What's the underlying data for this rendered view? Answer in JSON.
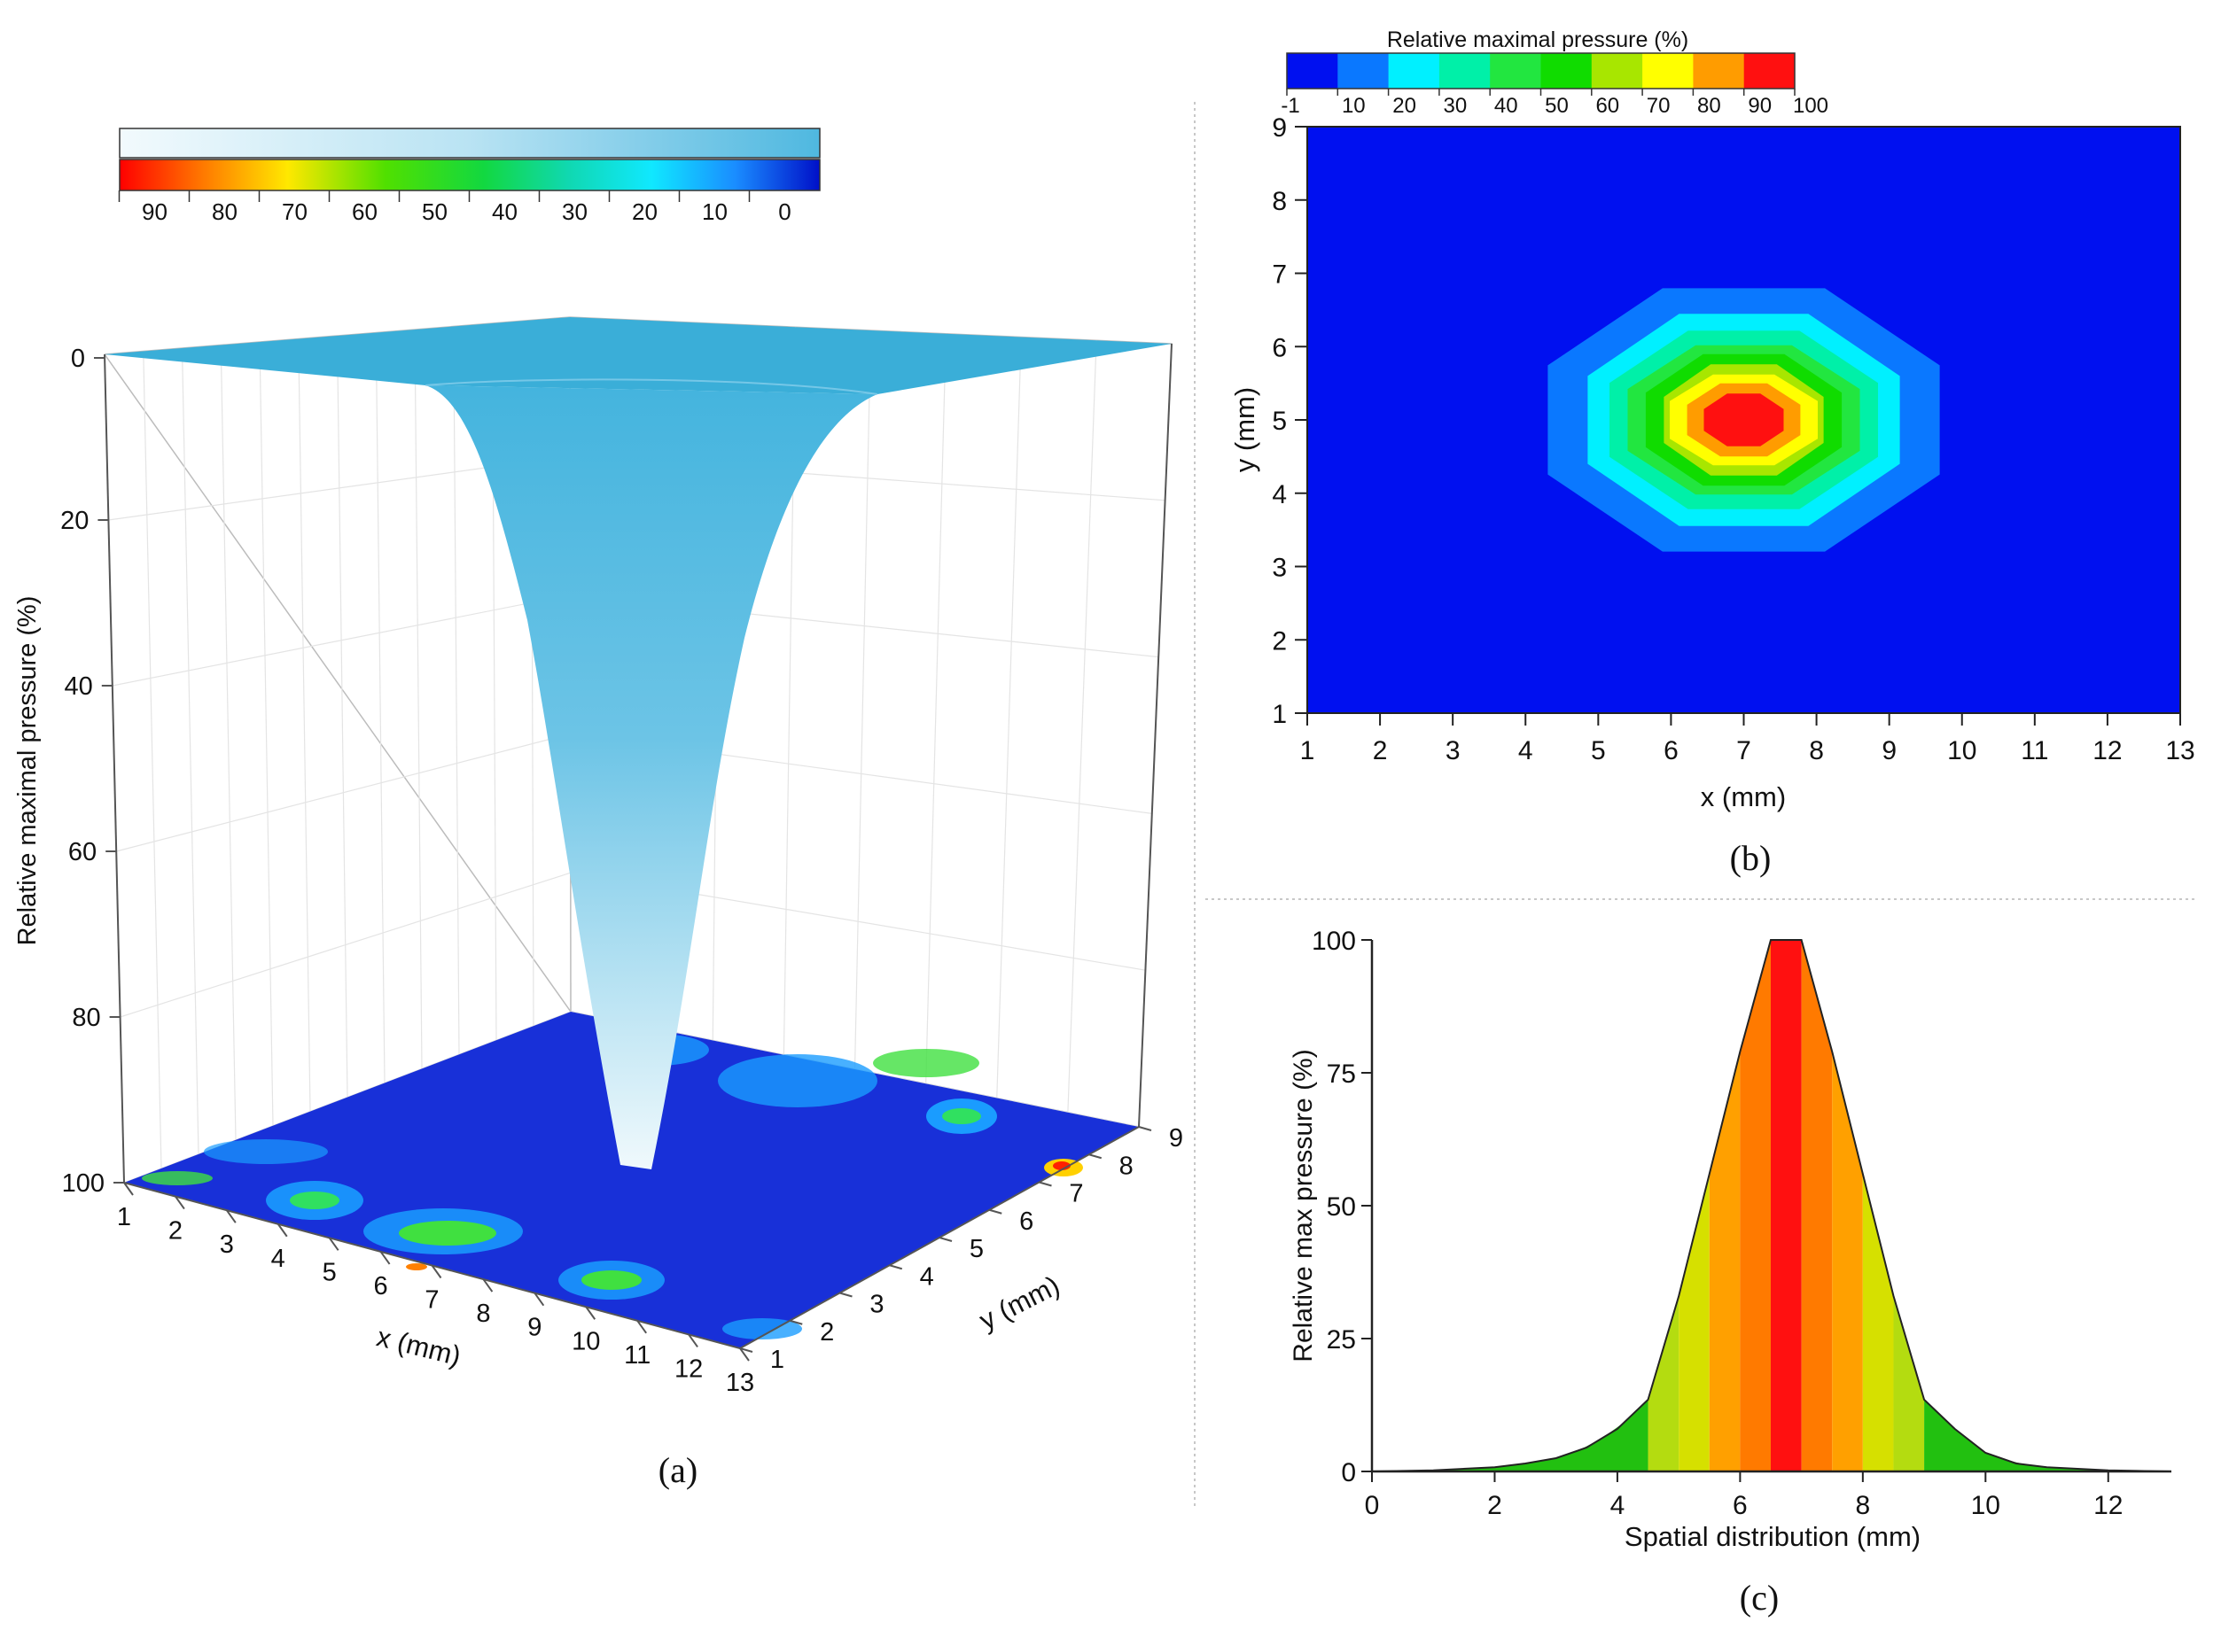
{
  "panels": {
    "a": {
      "caption": "(a)",
      "xlabel": "x (mm)",
      "ylabel": "y (mm)",
      "zlabel": "Relative maximal pressure (%)",
      "x_ticks": [
        "1",
        "2",
        "3",
        "4",
        "5",
        "6",
        "7",
        "8",
        "9",
        "10",
        "11",
        "12",
        "13"
      ],
      "y_ticks": [
        "1",
        "2",
        "3",
        "4",
        "5",
        "6",
        "7",
        "8",
        "9"
      ],
      "z_ticks": [
        "0",
        "20",
        "40",
        "60",
        "80",
        "100"
      ],
      "colorbar_ticks": [
        "90",
        "80",
        "70",
        "60",
        "50",
        "40",
        "30",
        "20",
        "10",
        "0"
      ],
      "surface_color": "#4fb8e0"
    },
    "b": {
      "caption": "(b)",
      "colorbar_title": "Relative maximal pressure (%)",
      "colorbar_ticks": [
        "-1",
        "10",
        "20",
        "30",
        "40",
        "50",
        "60",
        "70",
        "80",
        "90",
        "100"
      ],
      "xlabel": "x (mm)",
      "ylabel": "y (mm)",
      "x_ticks": [
        "1",
        "2",
        "3",
        "4",
        "5",
        "6",
        "7",
        "8",
        "9",
        "10",
        "11",
        "12",
        "13"
      ],
      "y_ticks": [
        "1",
        "2",
        "3",
        "4",
        "5",
        "6",
        "7",
        "8",
        "9"
      ]
    },
    "c": {
      "caption": "(c)",
      "xlabel": "Spatial distribution (mm)",
      "ylabel": "Relative max pressure (%)",
      "x_ticks": [
        "0",
        "2",
        "4",
        "6",
        "8",
        "10",
        "12"
      ],
      "y_ticks": [
        "0",
        "25",
        "50",
        "75",
        "100"
      ]
    }
  },
  "chart_data": [
    {
      "panel": "a",
      "type": "surface3d",
      "title": "",
      "xlabel": "x (mm)",
      "ylabel": "y (mm)",
      "zlabel": "Relative maximal pressure (%)",
      "xlim": [
        1,
        13
      ],
      "ylim": [
        1,
        9
      ],
      "zlim": [
        0,
        100
      ],
      "z_inverted": true,
      "peak": {
        "x": 7,
        "y": 5,
        "value": 100
      },
      "colorbar": {
        "ticks": [
          90,
          80,
          70,
          60,
          50,
          40,
          30,
          20,
          10,
          0
        ]
      }
    },
    {
      "panel": "b",
      "type": "heatmap",
      "title": "Relative maximal pressure (%)",
      "xlabel": "x (mm)",
      "ylabel": "y (mm)",
      "xlim": [
        1,
        13
      ],
      "ylim": [
        1,
        9
      ],
      "levels": [
        -1,
        10,
        20,
        30,
        40,
        50,
        60,
        70,
        80,
        90,
        100
      ],
      "level_colors": [
        "#0010f0",
        "#0a78ff",
        "#00f0ff",
        "#00f0a8",
        "#22e640",
        "#10dc00",
        "#a8e600",
        "#ffff00",
        "#ff9c00",
        "#ff1010"
      ],
      "contours": [
        {
          "level": 10,
          "rx": 2.7,
          "ry": 1.8
        },
        {
          "level": 20,
          "rx": 2.15,
          "ry": 1.45
        },
        {
          "level": 30,
          "rx": 1.85,
          "ry": 1.22
        },
        {
          "level": 40,
          "rx": 1.6,
          "ry": 1.02
        },
        {
          "level": 50,
          "rx": 1.35,
          "ry": 0.9
        },
        {
          "level": 60,
          "rx": 1.1,
          "ry": 0.76
        },
        {
          "level": 70,
          "rx": 1.02,
          "ry": 0.62
        },
        {
          "level": 80,
          "rx": 0.78,
          "ry": 0.5
        },
        {
          "level": 90,
          "rx": 0.55,
          "ry": 0.36
        }
      ],
      "center": {
        "x": 7,
        "y": 5
      }
    },
    {
      "panel": "c",
      "type": "area",
      "title": "",
      "xlabel": "Spatial distribution (mm)",
      "ylabel": "Relative max pressure (%)",
      "xlim": [
        0,
        13
      ],
      "ylim": [
        0,
        100
      ],
      "x": [
        0,
        1,
        2,
        2.5,
        3,
        3.5,
        4,
        4.5,
        5,
        5.5,
        6,
        6.5,
        7,
        7.5,
        8,
        8.5,
        9,
        9.5,
        10,
        10.5,
        11,
        12,
        13
      ],
      "y": [
        0,
        0.2,
        0.8,
        1.5,
        2.5,
        4.5,
        8,
        13.5,
        33,
        56,
        79,
        100,
        100,
        79,
        56,
        33,
        13.5,
        8,
        3.5,
        1.5,
        0.8,
        0.2,
        0
      ]
    }
  ]
}
